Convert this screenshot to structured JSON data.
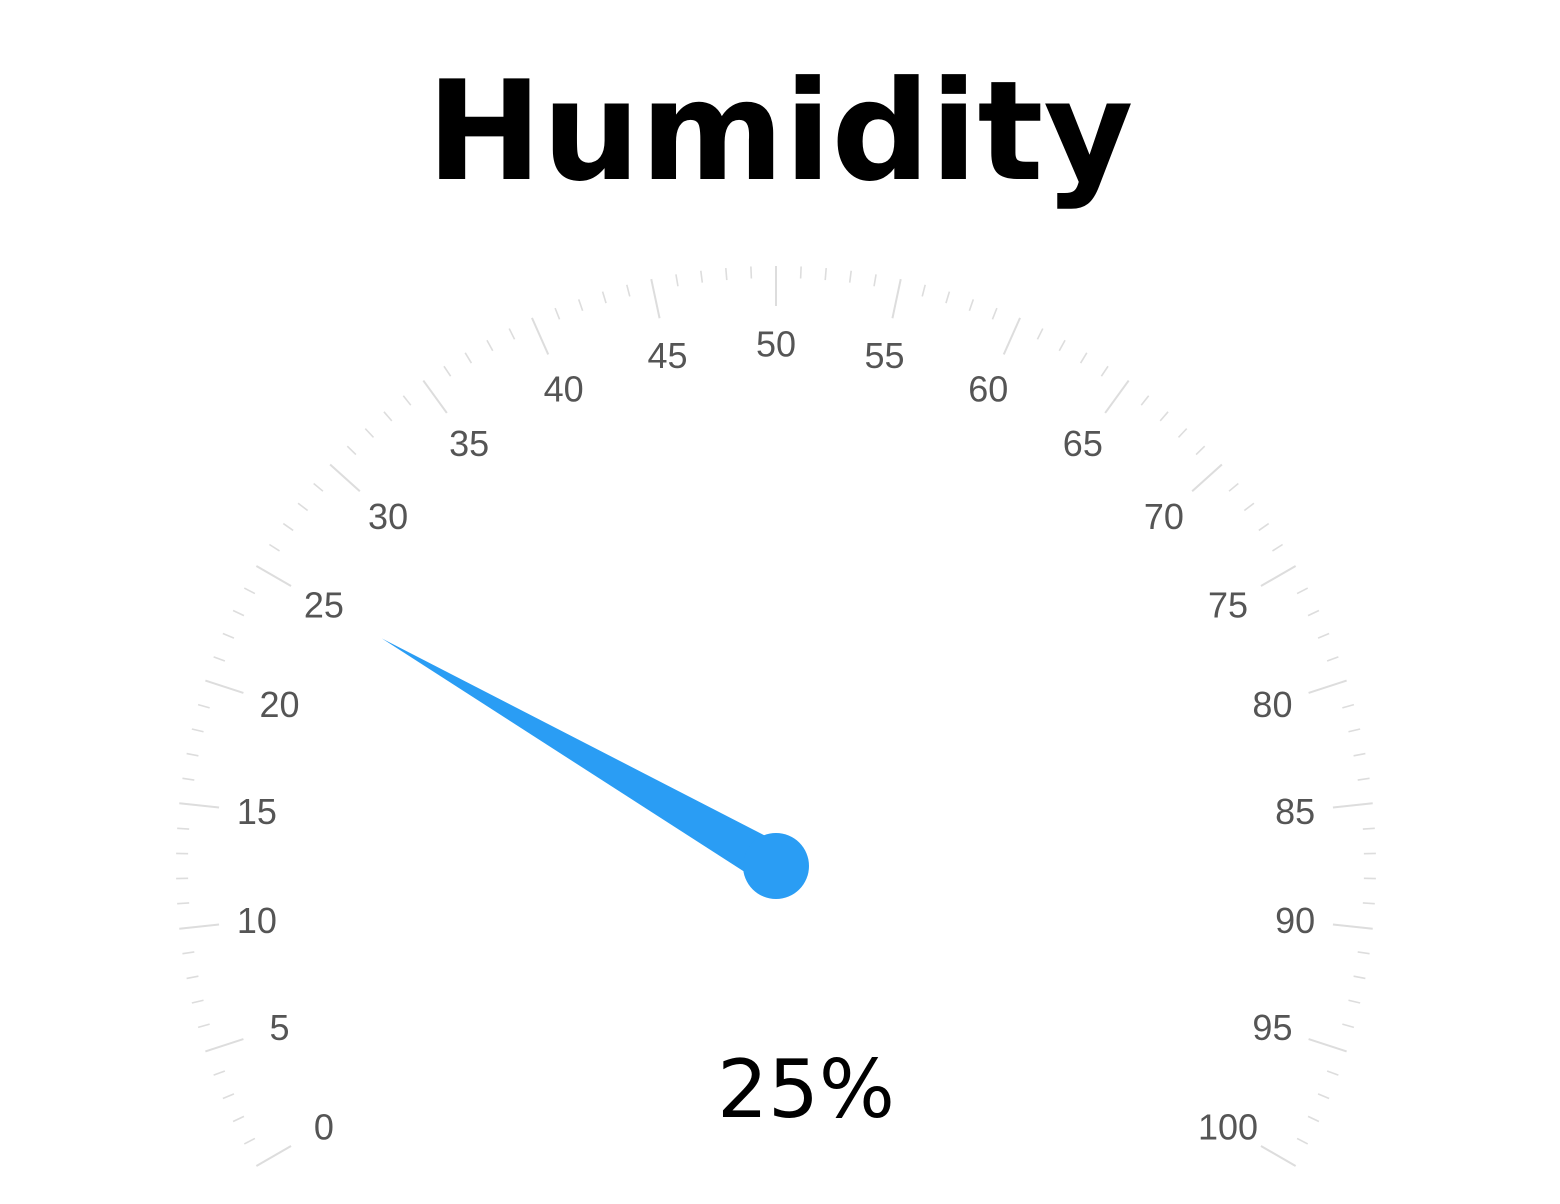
{
  "chart_data": {
    "type": "gauge",
    "title": "Humidity",
    "value": 25,
    "value_label": "25%",
    "min": 0,
    "max": 100,
    "major_step": 5,
    "minor_step": 1,
    "tick_labels": [
      "0",
      "5",
      "10",
      "15",
      "20",
      "25",
      "30",
      "35",
      "40",
      "45",
      "50",
      "55",
      "60",
      "65",
      "70",
      "75",
      "80",
      "85",
      "90",
      "95",
      "100"
    ],
    "needle_color": "#2a9df4",
    "tick_color": "#dddddd",
    "label_color": "#555555"
  }
}
